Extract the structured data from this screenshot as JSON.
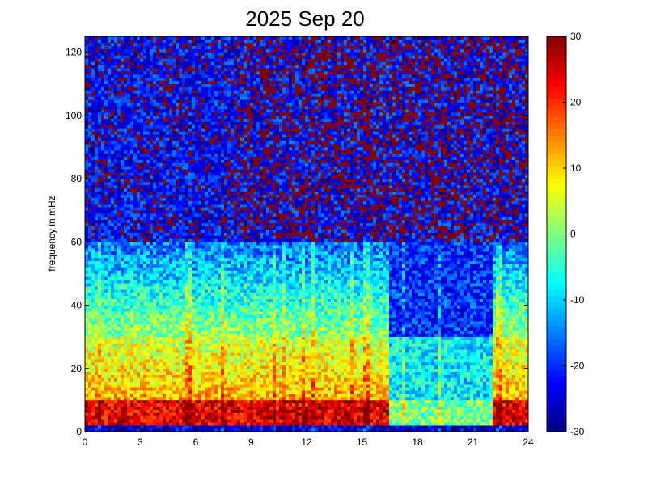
{
  "chart_data": {
    "type": "heatmap",
    "title": "2025 Sep 20",
    "xlabel": "",
    "ylabel": "frequency in mHz",
    "xlim": [
      0,
      24
    ],
    "ylim": [
      0,
      125
    ],
    "x_ticks": [
      "0",
      "3",
      "6",
      "9",
      "12",
      "15",
      "18",
      "21",
      "24"
    ],
    "y_ticks": [
      "0",
      "20",
      "40",
      "60",
      "80",
      "100",
      "120"
    ],
    "colorbar": {
      "colormap": "jet",
      "range": [
        -30,
        30
      ],
      "ticks": [
        "-30",
        "-20",
        "-10",
        "0",
        "10",
        "20",
        "30"
      ]
    },
    "time_columns": 137,
    "frequency_rows": 125,
    "gaps": [
      {
        "x_start": 16.4,
        "x_end": 22.0
      }
    ],
    "description_of_values": "Low frequencies (0-30 mHz) are high (yellow-red, up to +30) during 0-16 h and 22-24 h; mid band 30-60 mHz cyan/light blue; above 60 mHz dark blue with speckled saturated values.",
    "grid": false,
    "legend": "colorbar-right"
  }
}
